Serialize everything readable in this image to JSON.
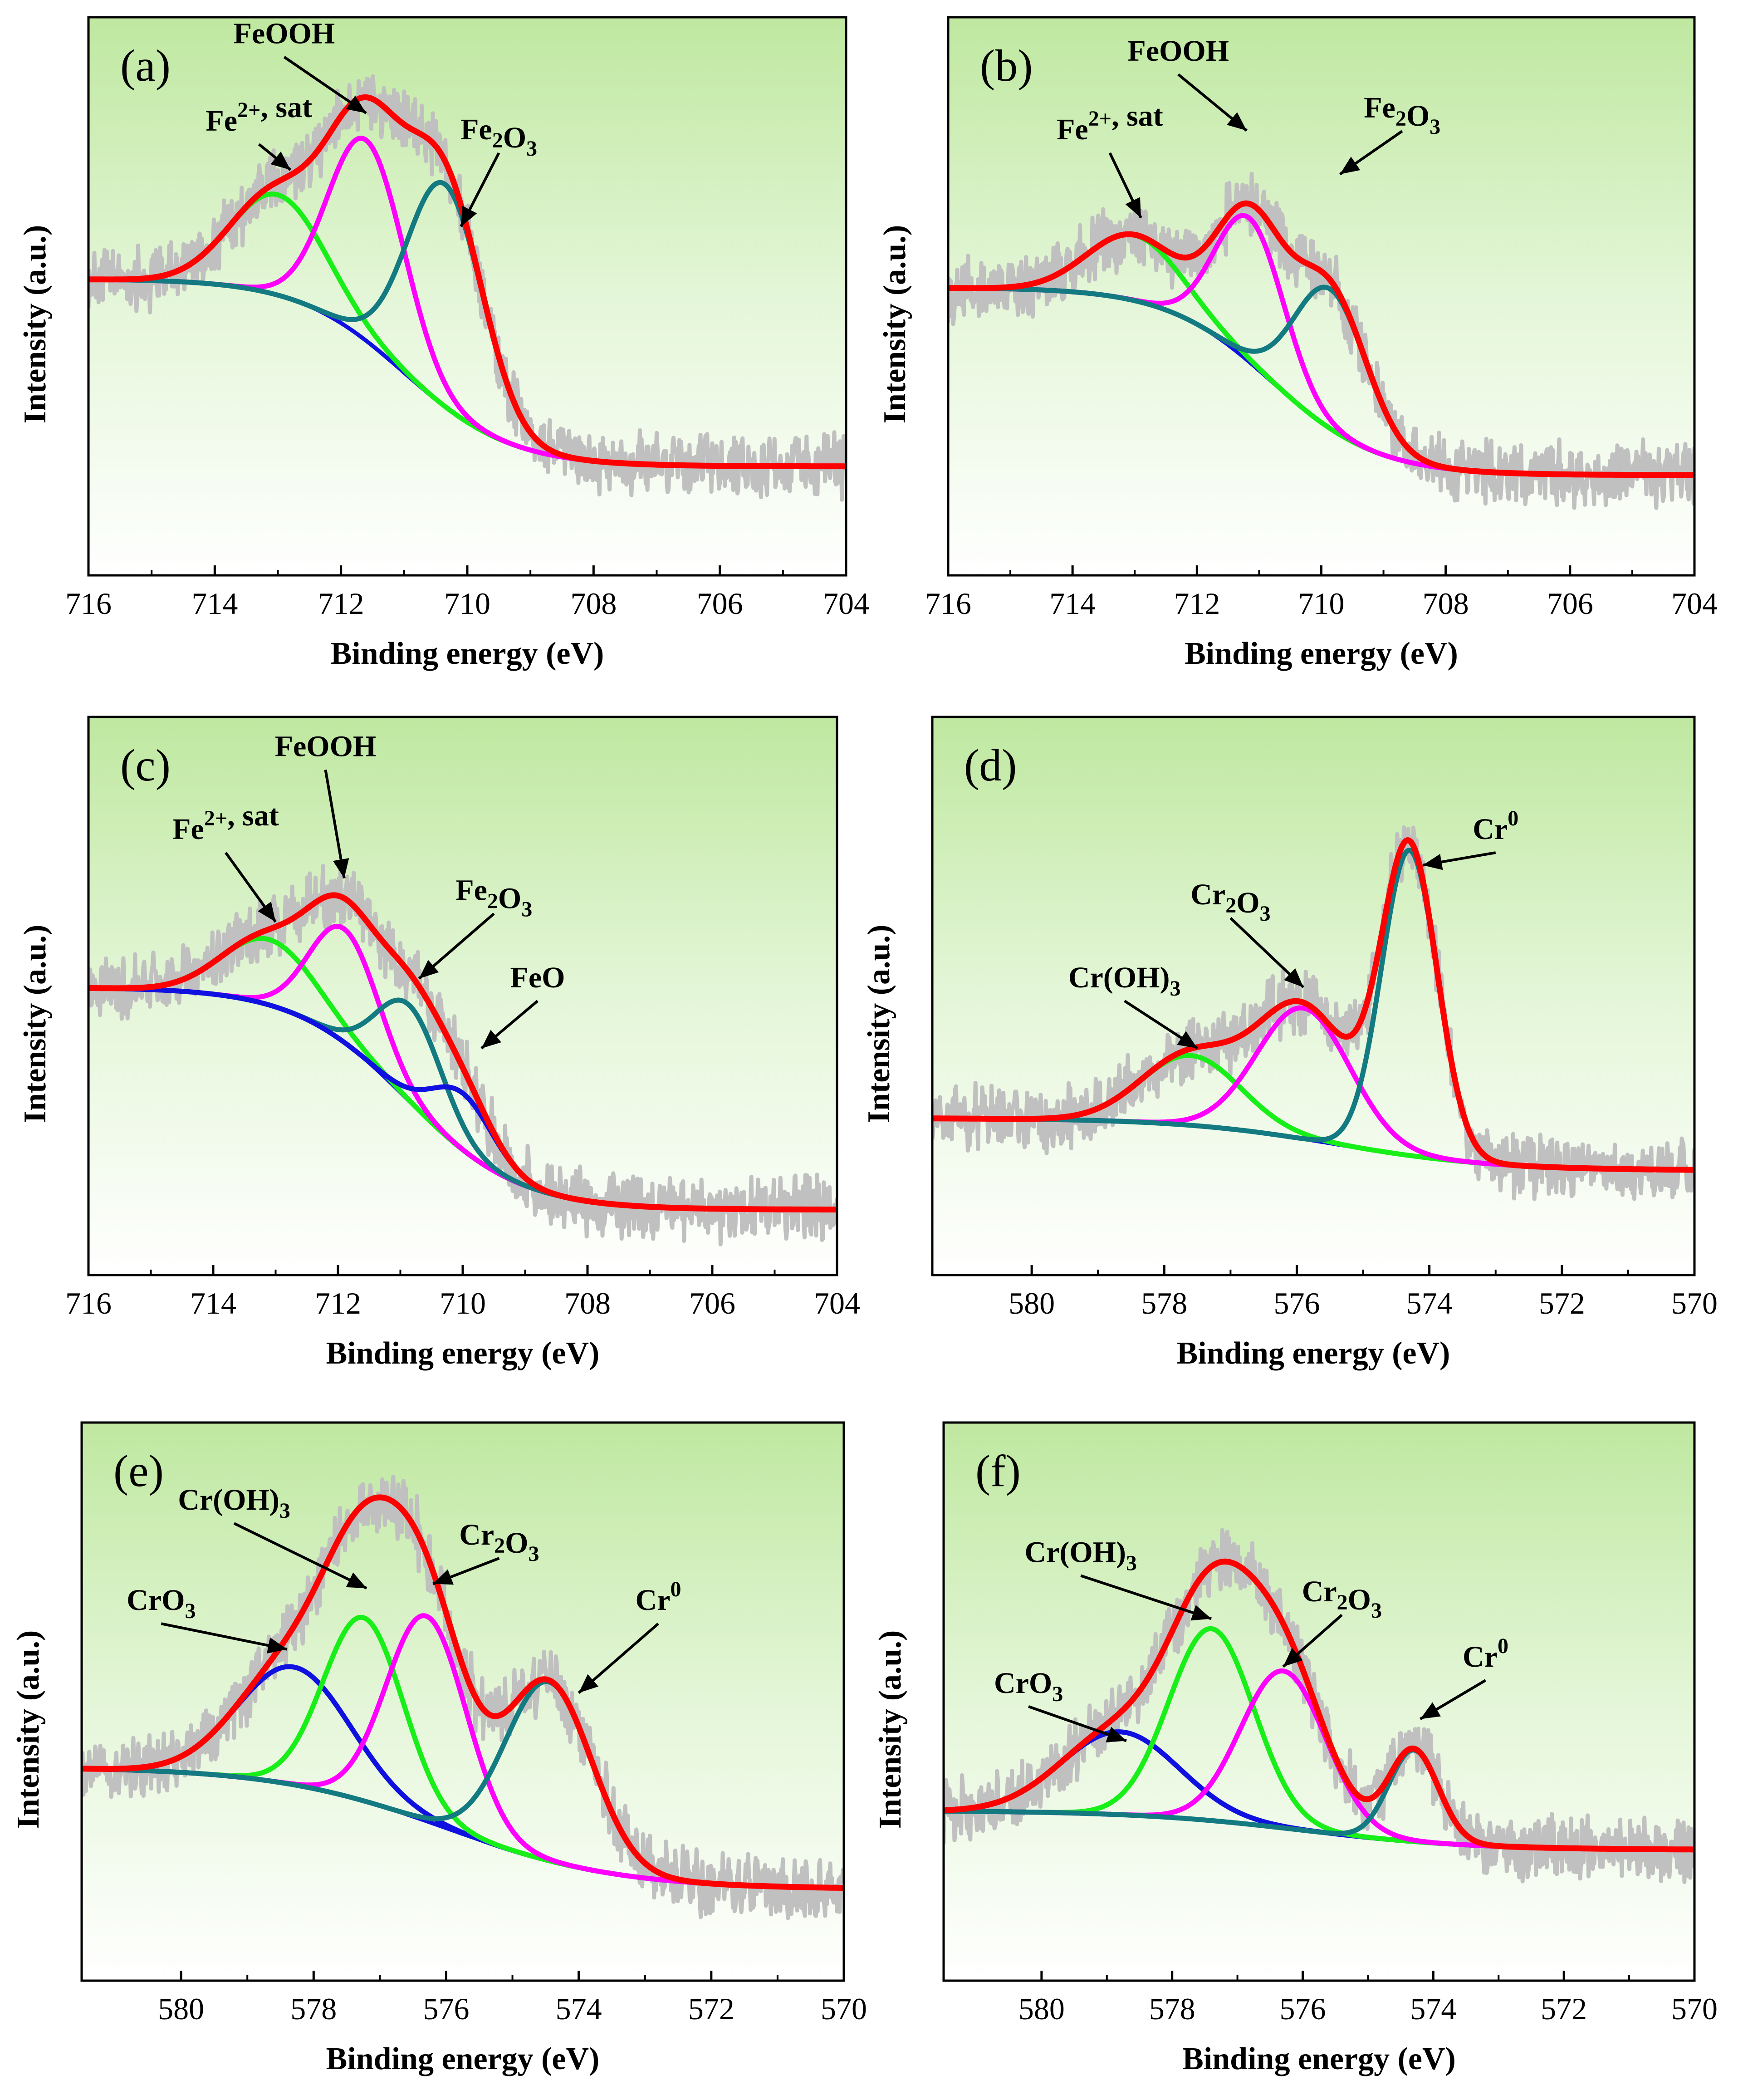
{
  "figure": {
    "colors": {
      "raw": "#c0c0c0",
      "envelope": "#ff0000",
      "background": "#1010e0",
      "magenta": "#ff00ff",
      "teal": "#127a80",
      "green": "#18ee18",
      "blue": "#1010e0"
    }
  },
  "chart_data": [
    {
      "panel": "(a)",
      "type": "line",
      "xlabel": "Binding energy (eV)",
      "ylabel": "Intensity (a.u.)",
      "xlim": [
        716,
        704
      ],
      "xticks": [
        "716",
        "714",
        "712",
        "710",
        "708",
        "706",
        "704"
      ],
      "ylim": [
        0,
        1.28
      ],
      "background": {
        "high": 0.68,
        "low": 0.25,
        "center": 711.0,
        "width": 0.85,
        "color": "#1010e0"
      },
      "components": [
        {
          "name": "Fe2+, sat",
          "center": 713.0,
          "height": 0.23,
          "sigma": 0.75,
          "color": "#18ee18"
        },
        {
          "name": "FeOOH",
          "center": 711.6,
          "height": 0.46,
          "sigma": 0.6,
          "color": "#ff00ff"
        },
        {
          "name": "Fe2O3",
          "center": 710.35,
          "height": 0.51,
          "sigma": 0.6,
          "color": "#127a80"
        }
      ],
      "annotations": [
        {
          "label": "Fe",
          "sub": "",
          "sup": "2+",
          "after": ", sat",
          "anchor": [
            713.3,
            1.02
          ],
          "target": [
            712.8,
            0.93
          ]
        },
        {
          "label": "FeOOH",
          "sub": "",
          "sup": "",
          "after": "",
          "anchor": [
            712.9,
            1.22
          ],
          "target": [
            711.6,
            1.06
          ]
        },
        {
          "label": "Fe",
          "sub": "2",
          "sup": "",
          "after": "O",
          "sub2": "3",
          "anchor": [
            709.5,
            1.0
          ],
          "target": [
            710.1,
            0.8
          ]
        }
      ]
    },
    {
      "panel": "(b)",
      "type": "line",
      "xlabel": "Binding energy (eV)",
      "ylabel": "Intensity (a.u.)",
      "xlim": [
        716,
        704
      ],
      "xticks": [
        "716",
        "714",
        "712",
        "710",
        "708",
        "706",
        "704"
      ],
      "ylim": [
        0,
        1.28
      ],
      "background": {
        "high": 0.66,
        "low": 0.23,
        "center": 710.8,
        "width": 0.85,
        "color": "#1010e0"
      },
      "components": [
        {
          "name": "Fe2+, sat",
          "center": 713.0,
          "height": 0.15,
          "sigma": 0.75,
          "color": "#18ee18"
        },
        {
          "name": "FeOOH",
          "center": 711.15,
          "height": 0.33,
          "sigma": 0.55,
          "color": "#ff00ff"
        },
        {
          "name": "Fe2O3",
          "center": 709.85,
          "height": 0.32,
          "sigma": 0.58,
          "color": "#127a80"
        }
      ],
      "annotations": [
        {
          "label": "Fe",
          "sub": "",
          "sup": "2+",
          "after": ", sat",
          "anchor": [
            713.4,
            1.0
          ],
          "target": [
            712.9,
            0.82
          ]
        },
        {
          "label": "FeOOH",
          "sub": "",
          "sup": "",
          "after": "",
          "anchor": [
            712.3,
            1.18
          ],
          "target": [
            711.2,
            1.02
          ]
        },
        {
          "label": "Fe",
          "sub": "2",
          "sup": "",
          "after": "O",
          "sub2": "3",
          "anchor": [
            708.7,
            1.05
          ],
          "target": [
            709.7,
            0.92
          ]
        }
      ]
    },
    {
      "panel": "(c)",
      "type": "line",
      "xlabel": "Binding energy (eV)",
      "ylabel": "Intensity (a.u.)",
      "xlim": [
        716,
        704
      ],
      "xticks": [
        "716",
        "714",
        "712",
        "710",
        "708",
        "706",
        "704"
      ],
      "ylim": [
        0,
        1.28
      ],
      "background": {
        "high": 0.66,
        "low": 0.15,
        "center": 710.9,
        "width": 0.9,
        "color": "#1010e0"
      },
      "components": [
        {
          "name": "Fe2+, sat",
          "center": 713.1,
          "height": 0.15,
          "sigma": 0.75,
          "color": "#18ee18"
        },
        {
          "name": "FeOOH",
          "center": 711.9,
          "height": 0.26,
          "sigma": 0.55,
          "color": "#ff00ff"
        },
        {
          "name": "Fe2O3",
          "center": 710.85,
          "height": 0.22,
          "sigma": 0.52,
          "color": "#127a80"
        },
        {
          "name": "FeO",
          "center": 710.0,
          "height": 0.13,
          "sigma": 0.5,
          "color": "#1010e0"
        }
      ],
      "annotations": [
        {
          "label": "Fe",
          "sub": "",
          "sup": "2+",
          "after": ", sat",
          "anchor": [
            713.8,
            1.0
          ],
          "target": [
            713.0,
            0.81
          ]
        },
        {
          "label": "FeOOH",
          "sub": "",
          "sup": "",
          "after": "",
          "anchor": [
            712.2,
            1.19
          ],
          "target": [
            711.9,
            0.91
          ]
        },
        {
          "label": "Fe",
          "sub": "2",
          "sup": "",
          "after": "O",
          "sub2": "3",
          "anchor": [
            709.5,
            0.86
          ],
          "target": [
            710.7,
            0.68
          ]
        },
        {
          "label": "FeO",
          "sub": "",
          "sup": "",
          "after": "",
          "anchor": [
            708.8,
            0.66
          ],
          "target": [
            709.7,
            0.52
          ]
        }
      ]
    },
    {
      "panel": "(d)",
      "type": "line",
      "xlabel": "Binding energy (eV)",
      "ylabel": "Intensity (a.u.)",
      "xlim": [
        581.5,
        570
      ],
      "xticks": [
        "580",
        "578",
        "576",
        "574",
        "572",
        "570"
      ],
      "ylim": [
        0,
        1.28
      ],
      "background": {
        "high": 0.36,
        "low": 0.24,
        "center": 575.4,
        "width": 1.2,
        "color": "#1010e0"
      },
      "components": [
        {
          "name": "Cr(OH)3",
          "center": 577.6,
          "height": 0.16,
          "sigma": 0.75,
          "color": "#18ee18"
        },
        {
          "name": "Cr2O3",
          "center": 575.9,
          "height": 0.3,
          "sigma": 0.7,
          "color": "#ff00ff"
        },
        {
          "name": "Cr0",
          "center": 574.3,
          "height": 0.7,
          "sigma": 0.42,
          "color": "#127a80"
        }
      ],
      "annotations": [
        {
          "label": "Cr(OH)",
          "sub": "3",
          "sup": "",
          "after": "",
          "anchor": [
            578.6,
            0.66
          ],
          "target": [
            577.5,
            0.52
          ]
        },
        {
          "label": "Cr",
          "sub": "2",
          "sup": "",
          "after": "O",
          "sub2": "3",
          "anchor": [
            577.0,
            0.85
          ],
          "target": [
            575.9,
            0.66
          ]
        },
        {
          "label": "Cr",
          "sub": "",
          "sup": "0",
          "after": "",
          "anchor": [
            573.0,
            1.0
          ],
          "target": [
            574.1,
            0.94
          ]
        }
      ]
    },
    {
      "panel": "(e)",
      "type": "line",
      "xlabel": "Binding energy (eV)",
      "ylabel": "Intensity (a.u.)",
      "xlim": [
        581.5,
        570
      ],
      "xticks": [
        "580",
        "578",
        "576",
        "574",
        "572",
        "570"
      ],
      "ylim": [
        0,
        1.28
      ],
      "background": {
        "high": 0.49,
        "low": 0.21,
        "center": 576.0,
        "width": 1.3,
        "color": "#1010e0"
      },
      "components": [
        {
          "name": "CrO3",
          "center": 578.3,
          "height": 0.27,
          "sigma": 0.85,
          "color": "#1010e0"
        },
        {
          "name": "Cr(OH)3",
          "center": 577.25,
          "height": 0.42,
          "sigma": 0.6,
          "color": "#18ee18"
        },
        {
          "name": "Cr2O3",
          "center": 576.3,
          "height": 0.47,
          "sigma": 0.6,
          "color": "#ff00ff"
        },
        {
          "name": "Cr0",
          "center": 574.45,
          "height": 0.41,
          "sigma": 0.65,
          "color": "#127a80"
        }
      ],
      "annotations": [
        {
          "label": "CrO",
          "sub": "3",
          "sup": "",
          "after": "",
          "anchor": [
            580.3,
            0.85
          ],
          "target": [
            578.4,
            0.76
          ]
        },
        {
          "label": "Cr(OH)",
          "sub": "3",
          "sup": "",
          "after": "",
          "anchor": [
            579.2,
            1.08
          ],
          "target": [
            577.2,
            0.9
          ]
        },
        {
          "label": "Cr",
          "sub": "2",
          "sup": "",
          "after": "O",
          "sub2": "3",
          "anchor": [
            575.2,
            1.0
          ],
          "target": [
            576.2,
            0.91
          ]
        },
        {
          "label": "Cr",
          "sub": "",
          "sup": "0",
          "after": "",
          "anchor": [
            572.8,
            0.85
          ],
          "target": [
            574.0,
            0.66
          ]
        }
      ]
    },
    {
      "panel": "(f)",
      "type": "line",
      "xlabel": "Binding energy (eV)",
      "ylabel": "Intensity (a.u.)",
      "xlim": [
        581.5,
        570
      ],
      "xticks": [
        "580",
        "578",
        "576",
        "574",
        "572",
        "570"
      ],
      "ylim": [
        0,
        1.28
      ],
      "background": {
        "high": 0.39,
        "low": 0.3,
        "center": 576.0,
        "width": 1.3,
        "color": "#1010e0"
      },
      "components": [
        {
          "name": "CrO3",
          "center": 578.8,
          "height": 0.19,
          "sigma": 0.9,
          "color": "#1010e0"
        },
        {
          "name": "Cr(OH)3",
          "center": 577.4,
          "height": 0.44,
          "sigma": 0.65,
          "color": "#18ee18"
        },
        {
          "name": "Cr2O3",
          "center": 576.3,
          "height": 0.36,
          "sigma": 0.65,
          "color": "#ff00ff"
        },
        {
          "name": "Cr0",
          "center": 574.3,
          "height": 0.21,
          "sigma": 0.38,
          "color": "#127a80"
        }
      ],
      "annotations": [
        {
          "label": "CrO",
          "sub": "3",
          "sup": "",
          "after": "",
          "anchor": [
            580.2,
            0.66
          ],
          "target": [
            578.7,
            0.55
          ]
        },
        {
          "label": "Cr(OH)",
          "sub": "3",
          "sup": "",
          "after": "",
          "anchor": [
            579.4,
            0.96
          ],
          "target": [
            577.4,
            0.83
          ]
        },
        {
          "label": "Cr",
          "sub": "2",
          "sup": "",
          "after": "O",
          "sub2": "3",
          "anchor": [
            575.4,
            0.87
          ],
          "target": [
            576.3,
            0.72
          ]
        },
        {
          "label": "Cr",
          "sub": "",
          "sup": "0",
          "after": "",
          "anchor": [
            573.2,
            0.72
          ],
          "target": [
            574.2,
            0.6
          ]
        }
      ]
    }
  ]
}
